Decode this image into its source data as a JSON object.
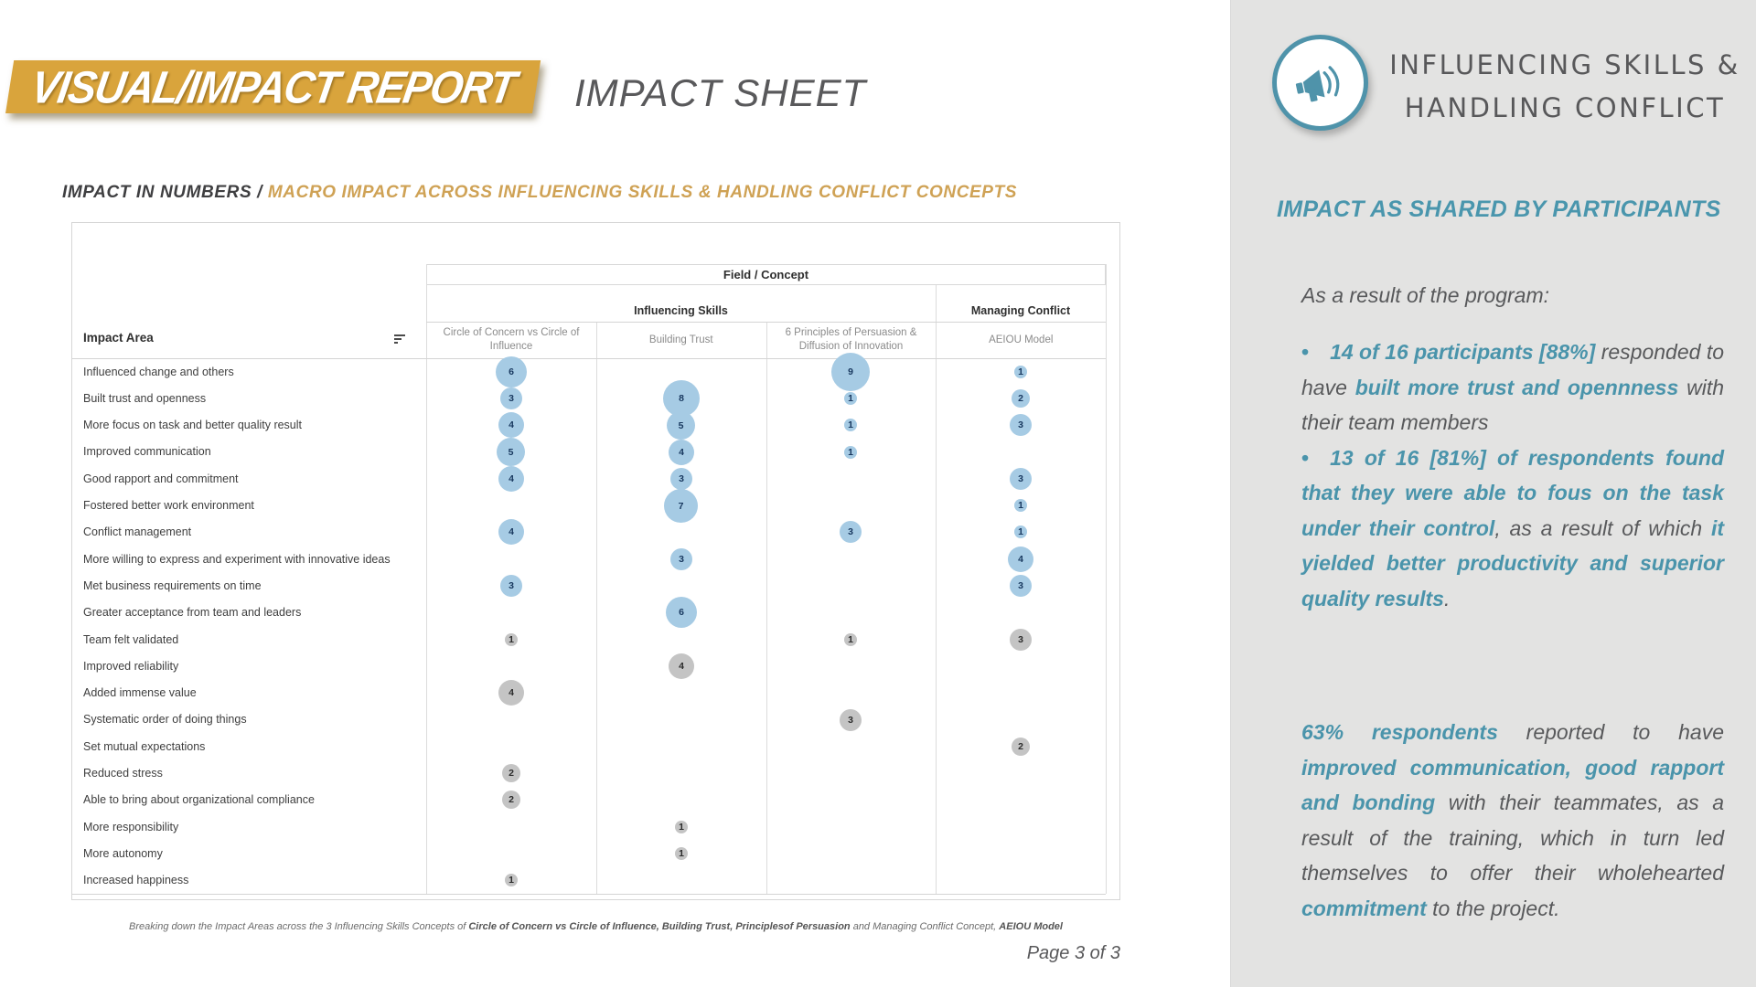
{
  "header": {
    "banner_title": "VISUAL/IMPACT REPORT",
    "page_title": "IMPACT SHEET"
  },
  "section": {
    "title_dark": "IMPACT IN NUMBERS / ",
    "title_gold": "MACRO IMPACT ACROSS INFLUENCING SKILLS & HANDLING CONFLICT CONCEPTS"
  },
  "chart_data": {
    "type": "heatmap",
    "mark": "sized-circle",
    "title": "Field / Concept",
    "row_header": "Impact Area",
    "groups": [
      {
        "label": "Influencing Skills",
        "span": 3
      },
      {
        "label": "Managing Conflict",
        "span": 1
      }
    ],
    "columns": [
      "Circle of Concern vs Circle of Influence",
      "Building Trust",
      "6 Principles of Persuasion & Diffusion of Innovation",
      "AEIOU Model"
    ],
    "rows": [
      {
        "label": "Influenced change and others",
        "values": [
          6,
          null,
          9,
          1
        ],
        "palette": "blue"
      },
      {
        "label": "Built trust and openness",
        "values": [
          3,
          8,
          1,
          2
        ],
        "palette": "blue"
      },
      {
        "label": "More focus on task and better quality result",
        "values": [
          4,
          5,
          1,
          3
        ],
        "palette": "blue"
      },
      {
        "label": "Improved communication",
        "values": [
          5,
          4,
          1,
          null
        ],
        "palette": "blue"
      },
      {
        "label": "Good rapport and commitment",
        "values": [
          4,
          3,
          null,
          3
        ],
        "palette": "blue"
      },
      {
        "label": "Fostered better work environment",
        "values": [
          null,
          7,
          null,
          1
        ],
        "palette": "blue"
      },
      {
        "label": "Conflict management",
        "values": [
          4,
          null,
          3,
          1
        ],
        "palette": "blue"
      },
      {
        "label": "More willing to express and experiment with innovative ideas",
        "values": [
          null,
          3,
          null,
          4
        ],
        "palette": "blue"
      },
      {
        "label": "Met business requirements on time",
        "values": [
          3,
          null,
          null,
          3
        ],
        "palette": "blue"
      },
      {
        "label": "Greater acceptance from team and leaders",
        "values": [
          null,
          6,
          null,
          null
        ],
        "palette": "blue"
      },
      {
        "label": "Team felt validated",
        "values": [
          1,
          null,
          1,
          3
        ],
        "palette": "gray"
      },
      {
        "label": "Improved reliability",
        "values": [
          null,
          4,
          null,
          null
        ],
        "palette": "gray"
      },
      {
        "label": "Added immense value",
        "values": [
          4,
          null,
          null,
          null
        ],
        "palette": "gray"
      },
      {
        "label": "Systematic order of doing things",
        "values": [
          null,
          null,
          3,
          null
        ],
        "palette": "gray"
      },
      {
        "label": "Set mutual expectations",
        "values": [
          null,
          null,
          null,
          2
        ],
        "palette": "gray"
      },
      {
        "label": "Reduced stress",
        "values": [
          2,
          null,
          null,
          null
        ],
        "palette": "gray"
      },
      {
        "label": "Able to bring about organizational compliance",
        "values": [
          2,
          null,
          null,
          null
        ],
        "palette": "gray"
      },
      {
        "label": "More responsibility",
        "values": [
          null,
          1,
          null,
          null
        ],
        "palette": "gray"
      },
      {
        "label": "More autonomy",
        "values": [
          null,
          1,
          null,
          null
        ],
        "palette": "gray"
      },
      {
        "label": "Increased happiness",
        "values": [
          1,
          null,
          null,
          null
        ],
        "palette": "gray"
      }
    ],
    "legend": "none",
    "bubble_colors": {
      "blue": "#a6cbe4",
      "gray": "#c4c4c4"
    }
  },
  "caption": {
    "segments": [
      {
        "text": "Breaking down the Impact Areas across the 3 Influencing Skills Concepts of ",
        "style": "cap"
      },
      {
        "text": "Circle of Concern vs Circle of Influence, Building Trust, Principlesof Persuasion",
        "style": "capb"
      },
      {
        "text": " and Managing Conflict Concept, ",
        "style": "cap"
      },
      {
        "text": "AEIOU Model",
        "style": "capb"
      }
    ]
  },
  "footer": {
    "page_label": "Page 3 of 3"
  },
  "icons": {
    "badge": "megaphone-icon",
    "table_sort": "sort-icon"
  },
  "colors": {
    "banner_bg": "#d9a43c",
    "gold_text": "#cfa255",
    "accent_teal": "#4a94ab",
    "body_gray": "#58595b",
    "sidebar_bg": "#e3e3e2",
    "bubble_blue": "#a6cbe4",
    "bubble_gray": "#c4c4c4"
  },
  "sidebar": {
    "title_line1": "INFLUENCING SKILLS &",
    "title_line2": "HANDLING CONFLICT",
    "heading": "IMPACT AS SHARED BY PARTICIPANTS",
    "intro": "As a result of the program:",
    "bullets": [
      {
        "segments": [
          {
            "text": "14 of 16 participants [88%]",
            "style": "accent"
          },
          {
            "text": " responded to have ",
            "style": "plain"
          },
          {
            "text": "built more trust and opennness",
            "style": "accent"
          },
          {
            "text": " with their team members",
            "style": "plain"
          }
        ]
      },
      {
        "segments": [
          {
            "text": "13 of 16 [81%] of respondents found that they were able to fous on the task under their control",
            "style": "accent"
          },
          {
            "text": ", as a result of which ",
            "style": "plain"
          },
          {
            "text": "it yielded better productivity and superior quality results",
            "style": "accent"
          },
          {
            "text": ".",
            "style": "plain"
          }
        ]
      }
    ],
    "closing": {
      "segments": [
        {
          "text": "63% respondents",
          "style": "accent"
        },
        {
          "text": " reported to have ",
          "style": "plain"
        },
        {
          "text": "improved communication, good rapport and bonding",
          "style": "accent"
        },
        {
          "text": " with their teammates, as a result of the training, which in turn led themselves to offer their wholehearted ",
          "style": "plain"
        },
        {
          "text": "commitment",
          "style": "accent"
        },
        {
          "text": " to the project.",
          "style": "plain"
        }
      ]
    }
  }
}
